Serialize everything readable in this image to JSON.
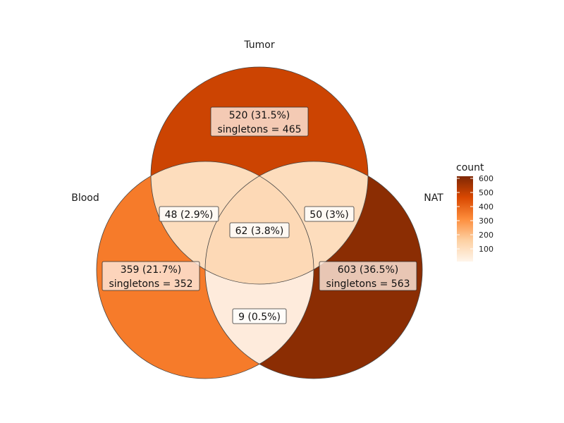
{
  "sets": {
    "tumor": "Tumor",
    "blood": "Blood",
    "nat": "NAT"
  },
  "regions": {
    "tumor_only": {
      "line1": "520 (31.5%)",
      "line2": "singletons = 465",
      "count": 520
    },
    "blood_only": {
      "line1": "359 (21.7%)",
      "line2": "singletons = 352",
      "count": 359
    },
    "nat_only": {
      "line1": "603 (36.5%)",
      "line2": "singletons = 563",
      "count": 603
    },
    "tumor_blood": {
      "line1": "48 (2.9%)",
      "count": 48
    },
    "tumor_nat": {
      "line1": "50 (3%)",
      "count": 50
    },
    "blood_nat": {
      "line1": "9 (0.5%)",
      "count": 9
    },
    "all_three": {
      "line1": "62 (3.8%)",
      "count": 62
    }
  },
  "legend": {
    "title": "count",
    "ticks": [
      "100",
      "200",
      "300",
      "400",
      "500",
      "600"
    ],
    "min_color": "#fff5eb",
    "max_color": "#7f2704"
  },
  "colors": {
    "tumor_only": "#cc4402",
    "blood_only": "#f67b2a",
    "nat_only": "#8b2d03",
    "tumor_blood": "#fdddbd",
    "tumor_nat": "#fdddbd",
    "blood_nat": "#feebdc",
    "all_three": "#fdd9b6"
  }
}
